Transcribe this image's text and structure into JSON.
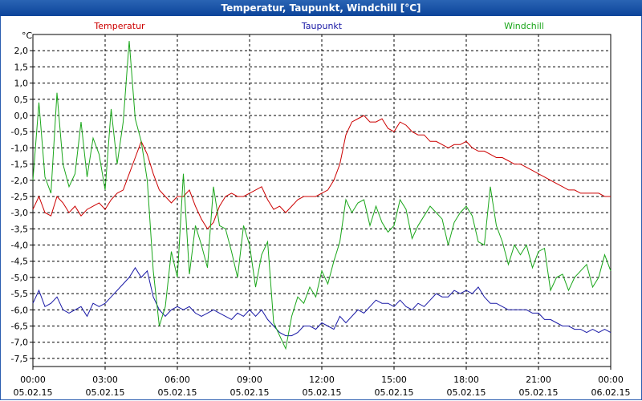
{
  "window": {
    "title": "Temperatur, Taupunkt, Windchill [°C]"
  },
  "chart_data": {
    "type": "line",
    "title": "Temperatur, Taupunkt, Windchill [°C]",
    "ylabel": "°C",
    "ylim": [
      -7.75,
      2.5
    ],
    "grid": true,
    "y_ticks": [
      "2,0",
      "1,5",
      "1,0",
      "0,5",
      "0,0",
      "-0,5",
      "-1,0",
      "-1,5",
      "-2,0",
      "-2,5",
      "-3,0",
      "-3,5",
      "-4,0",
      "-4,5",
      "-5,0",
      "-5,5",
      "-6,0",
      "-6,5",
      "-7,0",
      "-7,5"
    ],
    "x_ticks": [
      {
        "time": "00:00",
        "date": "05.02.15"
      },
      {
        "time": "03:00",
        "date": "05.02.15"
      },
      {
        "time": "06:00",
        "date": "05.02.15"
      },
      {
        "time": "09:00",
        "date": "05.02.15"
      },
      {
        "time": "12:00",
        "date": "05.02.15"
      },
      {
        "time": "15:00",
        "date": "05.02.15"
      },
      {
        "time": "18:00",
        "date": "05.02.15"
      },
      {
        "time": "21:00",
        "date": "05.02.15"
      },
      {
        "time": "00:00",
        "date": "06.02.15"
      }
    ],
    "x_range_hours": [
      0,
      24
    ],
    "series": [
      {
        "name": "Temperatur",
        "color": "#cc0000",
        "x": [
          0,
          0.25,
          0.5,
          0.75,
          1,
          1.25,
          1.5,
          1.75,
          2,
          2.25,
          2.5,
          2.75,
          3,
          3.25,
          3.5,
          3.75,
          4,
          4.25,
          4.5,
          4.75,
          5,
          5.25,
          5.5,
          5.75,
          6,
          6.25,
          6.5,
          6.75,
          7,
          7.25,
          7.5,
          7.75,
          8,
          8.25,
          8.5,
          8.75,
          9,
          9.25,
          9.5,
          9.75,
          10,
          10.25,
          10.5,
          10.75,
          11,
          11.25,
          11.5,
          11.75,
          12,
          12.25,
          12.5,
          12.75,
          13,
          13.25,
          13.5,
          13.75,
          14,
          14.25,
          14.5,
          14.75,
          15,
          15.25,
          15.5,
          15.75,
          16,
          16.25,
          16.5,
          16.75,
          17,
          17.25,
          17.5,
          17.75,
          18,
          18.25,
          18.5,
          18.75,
          19,
          19.25,
          19.5,
          19.75,
          20,
          20.25,
          20.5,
          20.75,
          21,
          21.25,
          21.5,
          21.75,
          22,
          22.25,
          22.5,
          22.75,
          23,
          23.25,
          23.5,
          23.75,
          24
        ],
        "y": [
          -2.9,
          -2.5,
          -3.0,
          -3.1,
          -2.5,
          -2.7,
          -3.0,
          -2.8,
          -3.1,
          -2.9,
          -2.8,
          -2.7,
          -2.9,
          -2.6,
          -2.4,
          -2.3,
          -1.8,
          -1.3,
          -0.8,
          -1.2,
          -1.8,
          -2.3,
          -2.5,
          -2.7,
          -2.5,
          -2.5,
          -2.3,
          -2.8,
          -3.2,
          -3.5,
          -3.3,
          -2.8,
          -2.5,
          -2.4,
          -2.5,
          -2.5,
          -2.4,
          -2.3,
          -2.2,
          -2.6,
          -2.9,
          -2.8,
          -3.0,
          -2.8,
          -2.6,
          -2.5,
          -2.5,
          -2.5,
          -2.4,
          -2.3,
          -2.0,
          -1.5,
          -0.6,
          -0.2,
          -0.1,
          0.0,
          -0.2,
          -0.2,
          -0.1,
          -0.4,
          -0.5,
          -0.2,
          -0.3,
          -0.5,
          -0.6,
          -0.6,
          -0.8,
          -0.8,
          -0.9,
          -1.0,
          -0.9,
          -0.9,
          -0.8,
          -1.0,
          -1.1,
          -1.1,
          -1.2,
          -1.3,
          -1.3,
          -1.4,
          -1.5,
          -1.5,
          -1.6,
          -1.7,
          -1.8,
          -1.9,
          -2.0,
          -2.1,
          -2.2,
          -2.3,
          -2.3,
          -2.4,
          -2.4,
          -2.4,
          -2.4,
          -2.5,
          -2.5
        ]
      },
      {
        "name": "Taupunkt",
        "color": "#1a1aa6",
        "x": [
          0,
          0.25,
          0.5,
          0.75,
          1,
          1.25,
          1.5,
          1.75,
          2,
          2.25,
          2.5,
          2.75,
          3,
          3.25,
          3.5,
          3.75,
          4,
          4.25,
          4.5,
          4.75,
          5,
          5.25,
          5.5,
          5.75,
          6,
          6.25,
          6.5,
          6.75,
          7,
          7.25,
          7.5,
          7.75,
          8,
          8.25,
          8.5,
          8.75,
          9,
          9.25,
          9.5,
          9.75,
          10,
          10.25,
          10.5,
          10.75,
          11,
          11.25,
          11.5,
          11.75,
          12,
          12.25,
          12.5,
          12.75,
          13,
          13.25,
          13.5,
          13.75,
          14,
          14.25,
          14.5,
          14.75,
          15,
          15.25,
          15.5,
          15.75,
          16,
          16.25,
          16.5,
          16.75,
          17,
          17.25,
          17.5,
          17.75,
          18,
          18.25,
          18.5,
          18.75,
          19,
          19.25,
          19.5,
          19.75,
          20,
          20.25,
          20.5,
          20.75,
          21,
          21.25,
          21.5,
          21.75,
          22,
          22.25,
          22.5,
          22.75,
          23,
          23.25,
          23.5,
          23.75,
          24
        ],
        "y": [
          -5.8,
          -5.4,
          -5.9,
          -5.8,
          -5.6,
          -6.0,
          -6.1,
          -6.0,
          -5.9,
          -6.2,
          -5.8,
          -5.9,
          -5.8,
          -5.6,
          -5.4,
          -5.2,
          -5.0,
          -4.7,
          -5.0,
          -4.8,
          -5.6,
          -6.0,
          -6.2,
          -6.0,
          -5.9,
          -6.0,
          -5.9,
          -6.1,
          -6.2,
          -6.1,
          -6.0,
          -6.1,
          -6.2,
          -6.3,
          -6.1,
          -6.2,
          -6.0,
          -6.2,
          -6.0,
          -6.3,
          -6.5,
          -6.7,
          -6.8,
          -6.8,
          -6.7,
          -6.5,
          -6.5,
          -6.6,
          -6.4,
          -6.5,
          -6.6,
          -6.2,
          -6.4,
          -6.2,
          -6.0,
          -6.1,
          -5.9,
          -5.7,
          -5.8,
          -5.8,
          -5.9,
          -5.7,
          -5.9,
          -6.0,
          -5.8,
          -5.9,
          -5.7,
          -5.5,
          -5.6,
          -5.6,
          -5.4,
          -5.5,
          -5.4,
          -5.5,
          -5.3,
          -5.6,
          -5.8,
          -5.8,
          -5.9,
          -6.0,
          -6.0,
          -6.0,
          -6.0,
          -6.1,
          -6.1,
          -6.3,
          -6.3,
          -6.4,
          -6.5,
          -6.5,
          -6.6,
          -6.6,
          -6.7,
          -6.6,
          -6.7,
          -6.6,
          -6.7
        ]
      },
      {
        "name": "Windchill",
        "color": "#1aa61a",
        "x": [
          0,
          0.25,
          0.5,
          0.75,
          1,
          1.25,
          1.5,
          1.75,
          2,
          2.25,
          2.5,
          2.75,
          3,
          3.25,
          3.5,
          3.75,
          4,
          4.25,
          4.5,
          4.75,
          5,
          5.25,
          5.5,
          5.75,
          6,
          6.25,
          6.5,
          6.75,
          7,
          7.25,
          7.5,
          7.75,
          8,
          8.25,
          8.5,
          8.75,
          9,
          9.25,
          9.5,
          9.75,
          10,
          10.25,
          10.5,
          10.75,
          11,
          11.25,
          11.5,
          11.75,
          12,
          12.25,
          12.5,
          12.75,
          13,
          13.25,
          13.5,
          13.75,
          14,
          14.25,
          14.5,
          14.75,
          15,
          15.25,
          15.5,
          15.75,
          16,
          16.25,
          16.5,
          16.75,
          17,
          17.25,
          17.5,
          17.75,
          18,
          18.25,
          18.5,
          18.75,
          19,
          19.25,
          19.5,
          19.75,
          20,
          20.25,
          20.5,
          20.75,
          21,
          21.25,
          21.5,
          21.75,
          22,
          22.25,
          22.5,
          22.75,
          23,
          23.25,
          23.5,
          23.75,
          24
        ],
        "y": [
          -2.0,
          0.4,
          -1.9,
          -2.4,
          0.7,
          -1.5,
          -2.2,
          -1.8,
          -0.2,
          -1.9,
          -0.7,
          -1.2,
          -2.3,
          0.2,
          -1.5,
          -0.2,
          2.3,
          -0.1,
          -0.8,
          -2.0,
          -4.8,
          -6.5,
          -5.9,
          -4.2,
          -5.0,
          -1.8,
          -4.9,
          -3.4,
          -4.0,
          -4.7,
          -2.2,
          -3.4,
          -3.5,
          -4.2,
          -5.0,
          -3.4,
          -4.0,
          -5.3,
          -4.3,
          -3.9,
          -6.4,
          -6.8,
          -7.2,
          -6.2,
          -5.6,
          -5.8,
          -5.3,
          -5.6,
          -4.8,
          -5.2,
          -4.5,
          -3.9,
          -2.6,
          -3.0,
          -2.7,
          -2.6,
          -3.4,
          -2.8,
          -3.3,
          -3.6,
          -3.4,
          -2.6,
          -2.9,
          -3.8,
          -3.4,
          -3.1,
          -2.8,
          -3.0,
          -3.2,
          -4.0,
          -3.3,
          -3.0,
          -2.8,
          -3.1,
          -3.9,
          -4.0,
          -2.2,
          -3.4,
          -3.9,
          -4.6,
          -4.0,
          -4.3,
          -4.0,
          -4.7,
          -4.2,
          -4.1,
          -5.4,
          -5.0,
          -4.9,
          -5.4,
          -5.0,
          -4.8,
          -4.6,
          -5.3,
          -5.0,
          -4.3,
          -4.8
        ]
      }
    ]
  }
}
